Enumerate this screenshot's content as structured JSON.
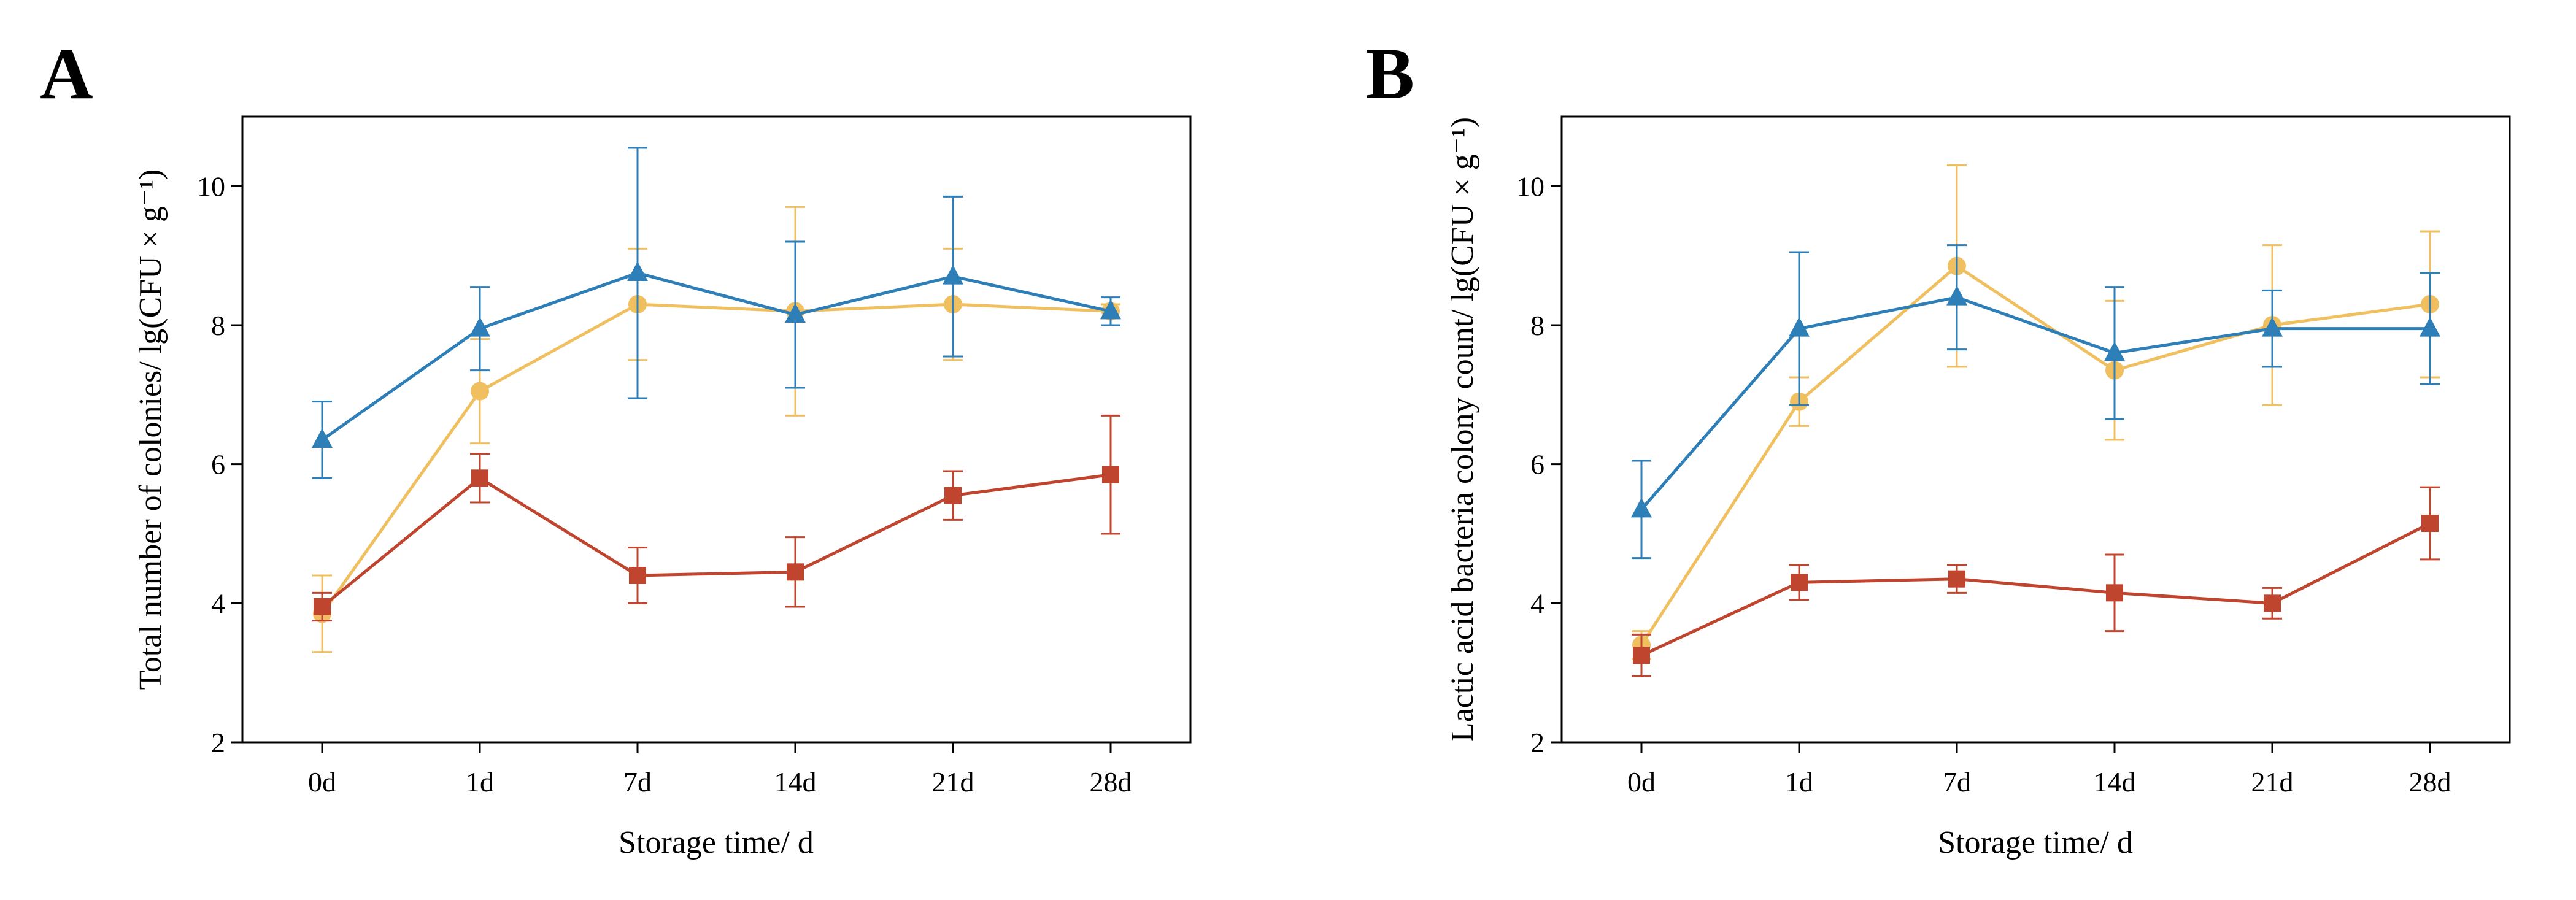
{
  "chart_data": [
    {
      "panel": "A",
      "type": "line",
      "categories": [
        "0d",
        "1d",
        "7d",
        "14d",
        "21d",
        "28d"
      ],
      "xlabel": "Storage time/ d",
      "ylabel": "Total number of colonies/ lg(CFU × g⁻¹)",
      "ylim": [
        2,
        11
      ],
      "yticks": [
        "2",
        "4",
        "6",
        "8",
        "10"
      ],
      "series": [
        {
          "name": "yellow-circle",
          "color": "#F0C060",
          "marker": "circle",
          "values": [
            3.85,
            7.05,
            8.3,
            8.2,
            8.3,
            8.2
          ],
          "errors": [
            0.55,
            0.75,
            0.8,
            1.5,
            0.8,
            0.1
          ]
        },
        {
          "name": "blue-triangle",
          "color": "#2E7EB8",
          "marker": "triangle",
          "values": [
            6.35,
            7.95,
            8.75,
            8.15,
            8.7,
            8.2
          ],
          "errors": [
            0.55,
            0.6,
            1.8,
            1.05,
            1.15,
            0.2
          ]
        },
        {
          "name": "red-square",
          "color": "#C0452F",
          "marker": "square",
          "values": [
            3.95,
            5.8,
            4.4,
            4.45,
            5.55,
            5.85
          ],
          "errors": [
            0.2,
            0.35,
            0.4,
            0.5,
            0.35,
            0.85
          ]
        }
      ]
    },
    {
      "panel": "B",
      "type": "line",
      "categories": [
        "0d",
        "1d",
        "7d",
        "14d",
        "21d",
        "28d"
      ],
      "xlabel": "Storage time/ d",
      "ylabel": "Lactic acid bacteria colony count/ lg(CFU × g⁻¹)",
      "ylim": [
        2,
        11
      ],
      "yticks": [
        "2",
        "4",
        "6",
        "8",
        "10"
      ],
      "series": [
        {
          "name": "yellow-circle",
          "color": "#F0C060",
          "marker": "circle",
          "values": [
            3.4,
            6.9,
            8.85,
            7.35,
            8.0,
            8.3
          ],
          "errors": [
            0.2,
            0.35,
            1.45,
            1.0,
            1.15,
            1.05
          ]
        },
        {
          "name": "blue-triangle",
          "color": "#2E7EB8",
          "marker": "triangle",
          "values": [
            5.35,
            7.95,
            8.4,
            7.6,
            7.95,
            7.95
          ],
          "errors": [
            0.7,
            1.1,
            0.75,
            0.95,
            0.55,
            0.8
          ]
        },
        {
          "name": "red-square",
          "color": "#C0452F",
          "marker": "square",
          "values": [
            3.25,
            4.3,
            4.35,
            4.15,
            4.0,
            5.15
          ],
          "errors": [
            0.3,
            0.25,
            0.2,
            0.55,
            0.22,
            0.52
          ]
        }
      ]
    }
  ]
}
